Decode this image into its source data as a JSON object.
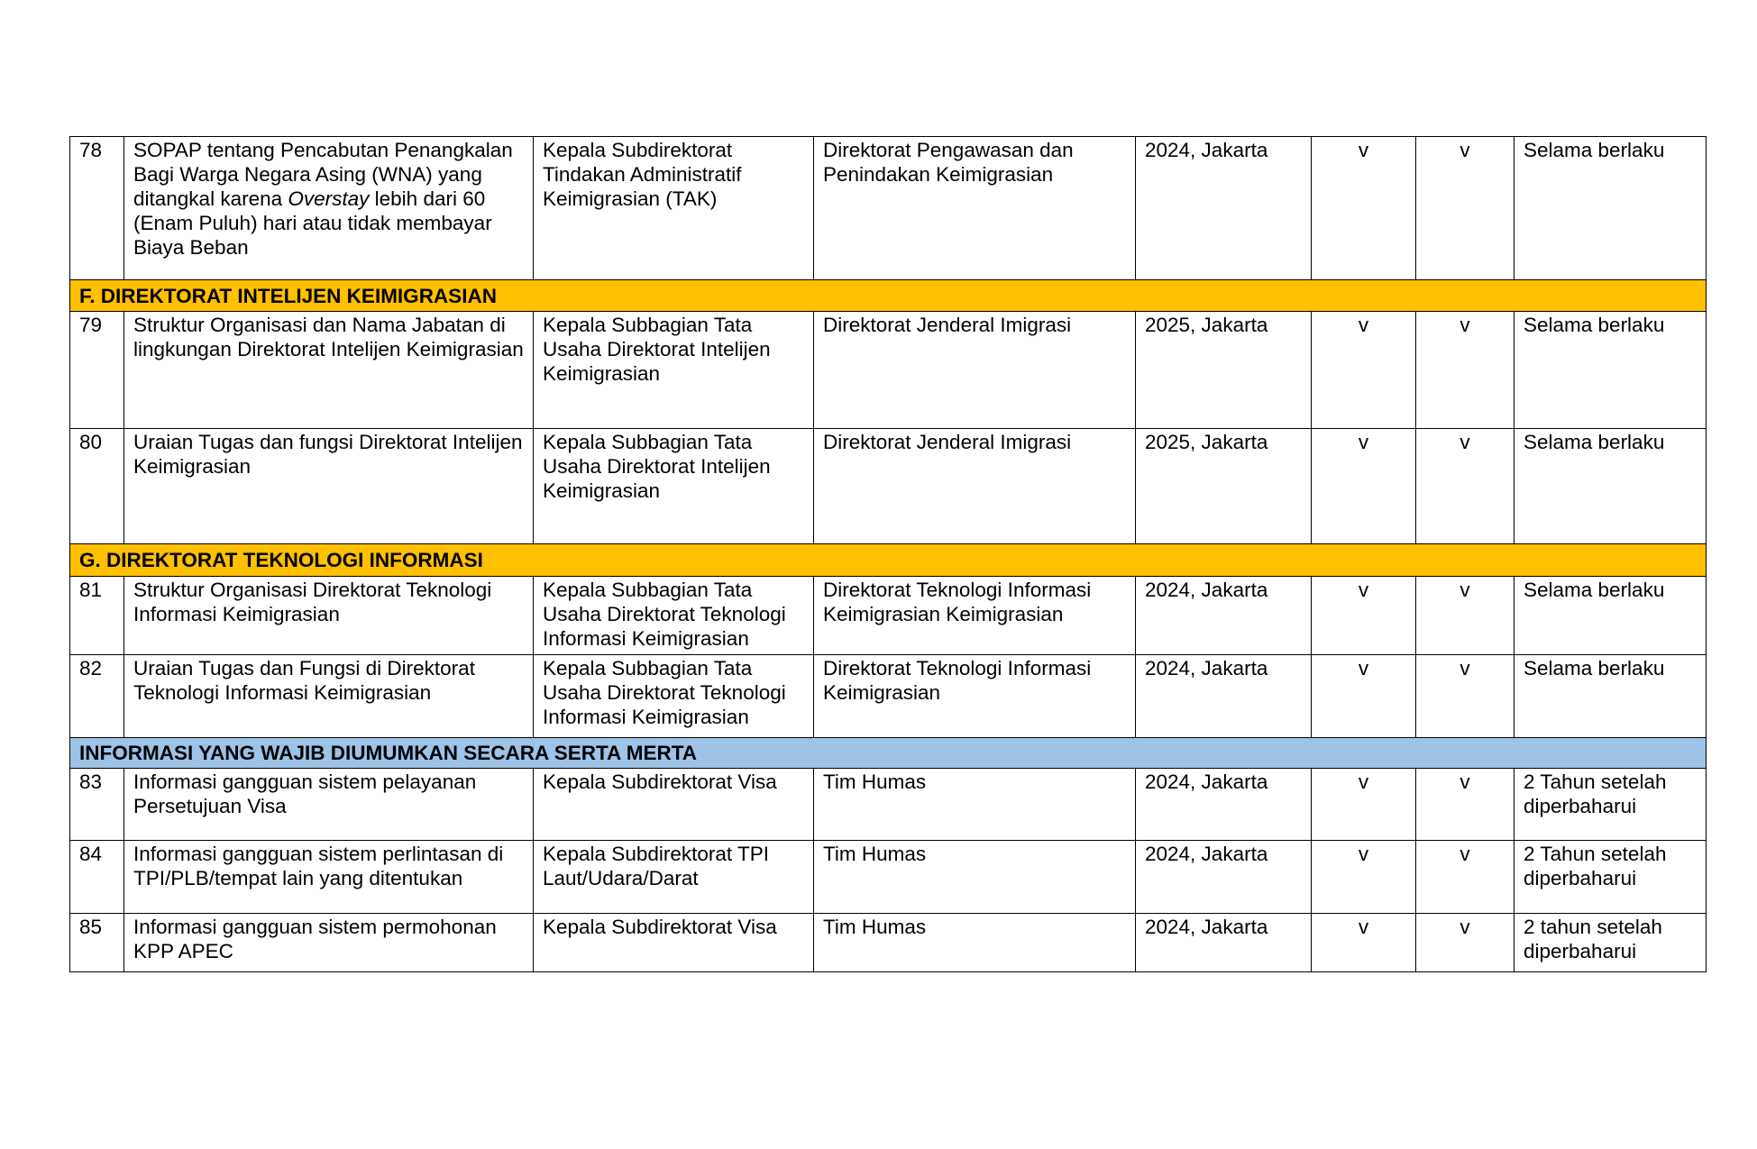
{
  "colors": {
    "section_yellow": "#FFC000",
    "section_blue": "#9DC3E6"
  },
  "rows": [
    {
      "type": "item",
      "no": "78",
      "title_pre": "SOPAP tentang Pencabutan Penangkalan Bagi Warga Negara Asing (WNA) yang ditangkal karena ",
      "title_italic": "Overstay",
      "title_post": " lebih dari 60 (Enam Puluh) hari atau tidak membayar Biaya Beban",
      "pj": "Kepala Subdirektorat Tindakan Administratif Keimigrasian (TAK)",
      "unit": "Direktorat Pengawasan dan Penindakan Keimigrasian",
      "year": "2024, Jakarta",
      "v1": "v",
      "v2": "v",
      "retensi": "Selama berlaku"
    },
    {
      "type": "section",
      "color": "yellow",
      "label": "F. DIREKTORAT INTELIJEN KEIMIGRASIAN"
    },
    {
      "type": "item",
      "no": "79",
      "title_pre": "Struktur Organisasi dan Nama Jabatan di lingkungan Direktorat Intelijen Keimigrasian",
      "pj": "Kepala Subbagian Tata Usaha Direktorat Intelijen Keimigrasian",
      "unit": "Direktorat Jenderal Imigrasi",
      "year": "2025, Jakarta",
      "v1": "v",
      "v2": "v",
      "retensi": "Selama berlaku"
    },
    {
      "type": "item",
      "no": "80",
      "title_pre": "Uraian Tugas dan fungsi Direktorat Intelijen Keimigrasian",
      "pj": "Kepala Subbagian Tata Usaha Direktorat Intelijen Keimigrasian",
      "unit": "Direktorat Jenderal Imigrasi",
      "year": "2025, Jakarta",
      "v1": "v",
      "v2": "v",
      "retensi": "Selama berlaku"
    },
    {
      "type": "section",
      "color": "yellow",
      "label": "G. DIREKTORAT TEKNOLOGI INFORMASI"
    },
    {
      "type": "item",
      "no": "81",
      "title_pre": "Struktur Organisasi Direktorat Teknologi Informasi Keimigrasian",
      "pj": "Kepala Subbagian Tata Usaha Direktorat Teknologi Informasi Keimigrasian",
      "unit": "Direktorat Teknologi Informasi Keimigrasian Keimigrasian",
      "year": "2024, Jakarta",
      "v1": "v",
      "v2": "v",
      "retensi": "Selama berlaku"
    },
    {
      "type": "item",
      "no": "82",
      "title_pre": "Uraian Tugas dan Fungsi di Direktorat Teknologi Informasi Keimigrasian",
      "pj": "Kepala Subbagian Tata Usaha Direktorat Teknologi Informasi Keimigrasian",
      "unit": "Direktorat Teknologi Informasi Keimigrasian",
      "year": "2024, Jakarta",
      "v1": "v",
      "v2": "v",
      "retensi": "Selama berlaku"
    },
    {
      "type": "section",
      "color": "blue",
      "label": "INFORMASI YANG WAJIB DIUMUMKAN SECARA SERTA MERTA"
    },
    {
      "type": "item",
      "no": "83",
      "title_pre": "Informasi gangguan sistem pelayanan Persetujuan Visa",
      "pj": "Kepala Subdirektorat Visa",
      "unit": "Tim Humas",
      "year": "2024, Jakarta",
      "v1": "v",
      "v2": "v",
      "retensi": "2 Tahun setelah diperbaharui"
    },
    {
      "type": "item",
      "no": "84",
      "title_pre": "Informasi gangguan sistem perlintasan di TPI/PLB/tempat lain yang ditentukan",
      "pj": "Kepala Subdirektorat TPI Laut/Udara/Darat",
      "unit": "Tim Humas",
      "year": "2024, Jakarta",
      "v1": "v",
      "v2": "v",
      "retensi": "2 Tahun setelah diperbaharui"
    },
    {
      "type": "item",
      "no": "85",
      "title_pre": "Informasi gangguan sistem permohonan KPP APEC",
      "pj": "Kepala Subdirektorat Visa",
      "unit": "Tim Humas",
      "year": "2024, Jakarta",
      "v1": "v",
      "v2": "v",
      "retensi": "2 tahun setelah diperbaharui"
    }
  ]
}
